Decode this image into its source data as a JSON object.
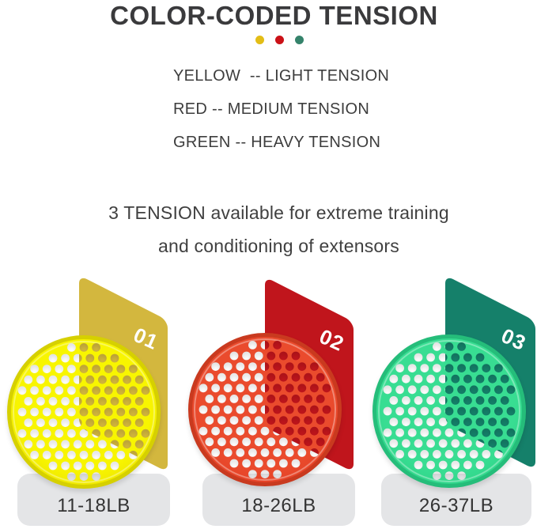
{
  "title": "COLOR-CODED TENSION",
  "legend_dots": [
    {
      "name": "yellow",
      "color": "#e3bd16"
    },
    {
      "name": "red",
      "color": "#cb1117"
    },
    {
      "name": "green",
      "color": "#35836b"
    }
  ],
  "tension_lines": {
    "yellow": "YELLOW  -- LIGHT TENSION",
    "red": "RED -- MEDIUM TENSION",
    "green": "GREEN -- HEAVY TENSION"
  },
  "description": {
    "line1": "3 TENSION available for extreme training",
    "line2": "and conditioning of extensors"
  },
  "label_bg": "#e4e5e7",
  "products": [
    {
      "number": "01",
      "weight_label": "11-18LB",
      "card_color": "#d3b73e",
      "disc_color": "#f8f500",
      "disc_edge_color": "#e9e000",
      "rim_color": "#d6d000"
    },
    {
      "number": "02",
      "weight_label": "18-26LB",
      "card_color": "#c0151c",
      "disc_color": "#ea4b2d",
      "disc_edge_color": "#e23d22",
      "rim_color": "#c93a1f"
    },
    {
      "number": "03",
      "weight_label": "26-37LB",
      "card_color": "#15806a",
      "disc_color": "#38dd92",
      "disc_edge_color": "#2bd186",
      "rim_color": "#25bd7a"
    }
  ]
}
